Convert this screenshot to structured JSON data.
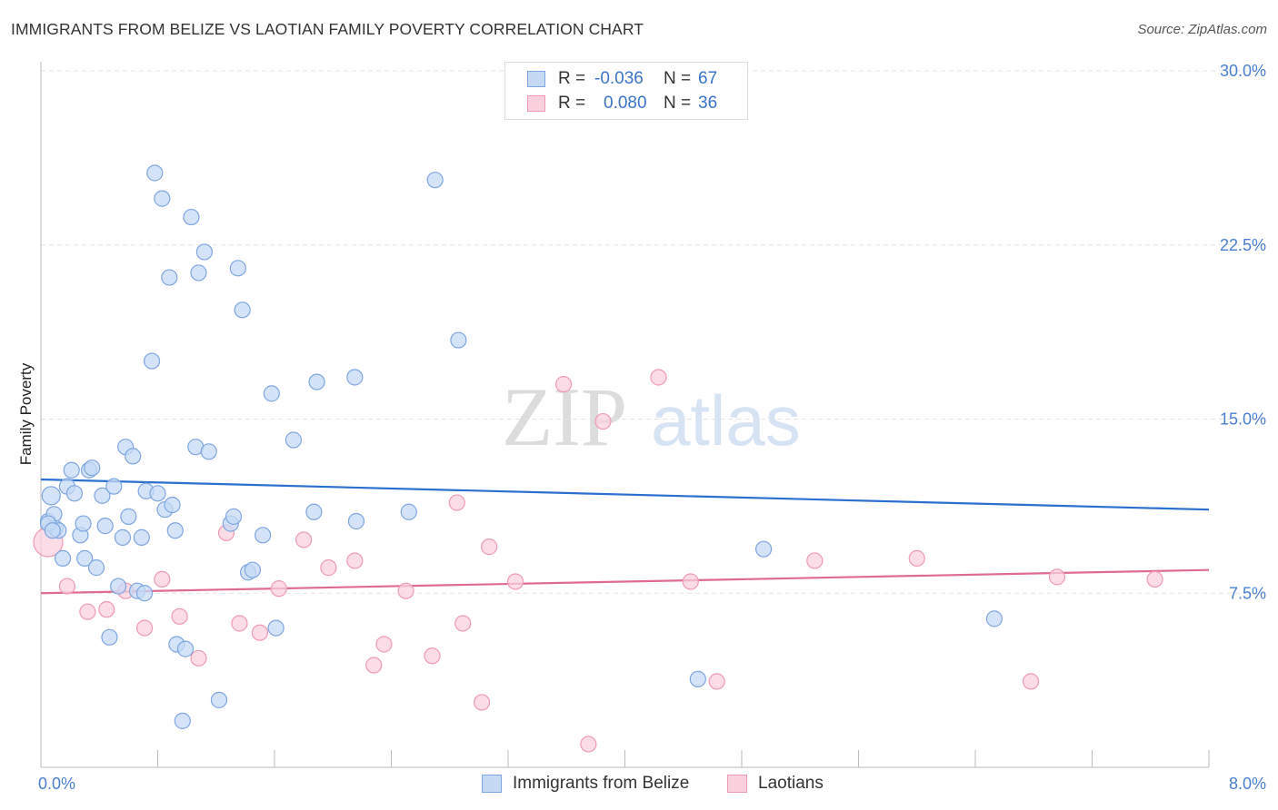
{
  "header": {
    "title": "IMMIGRANTS FROM BELIZE VS LAOTIAN FAMILY POVERTY CORRELATION CHART",
    "source": "Source: ZipAtlas.com"
  },
  "watermark": {
    "zip": "ZIP",
    "atlas": "atlas"
  },
  "legend": {
    "rows": [
      {
        "r_label": "R =",
        "r_value": "-0.036",
        "n_label": "N =",
        "n_value": "67"
      },
      {
        "r_label": "R =",
        "r_value": "0.080",
        "n_label": "N =",
        "n_value": "36"
      }
    ]
  },
  "bottom_legend": {
    "belize": "Immigrants from Belize",
    "laotians": "Laotians"
  },
  "colors": {
    "belize_fill": "#c5d9f5",
    "belize_stroke": "#7ea6e0",
    "belize_line": "#2b6fcf",
    "laotian_fill": "#fbd0dd",
    "laotian_stroke": "#ef9ab4",
    "laotian_line": "#e06a93",
    "tick_text": "#4a7fcf"
  },
  "chart_data": {
    "type": "scatter",
    "title": "IMMIGRANTS FROM BELIZE VS LAOTIAN FAMILY POVERTY CORRELATION CHART",
    "xlabel": "",
    "ylabel": "Family Poverty",
    "xlim": [
      0,
      8
    ],
    "ylim": [
      0,
      30
    ],
    "x_tick_labels": [
      "0.0%",
      "8.0%"
    ],
    "y_ticks": [
      7.5,
      15.0,
      22.5,
      30.0
    ],
    "y_tick_labels": [
      "7.5%",
      "15.0%",
      "22.5%",
      "30.0%"
    ],
    "grid": "horizontal dashed",
    "legend_position": "top-center",
    "series": [
      {
        "name": "Immigrants from Belize",
        "trend": {
          "x": [
            0,
            8
          ],
          "y": [
            12.4,
            11.1
          ]
        },
        "points": [
          [
            0.05,
            10.6
          ],
          [
            0.07,
            11.7
          ],
          [
            0.09,
            10.9
          ],
          [
            0.1,
            10.3
          ],
          [
            0.12,
            10.2
          ],
          [
            0.15,
            9.0
          ],
          [
            0.18,
            12.1
          ],
          [
            0.21,
            12.8
          ],
          [
            0.23,
            11.8
          ],
          [
            0.27,
            10.0
          ],
          [
            0.29,
            10.5
          ],
          [
            0.3,
            9.0
          ],
          [
            0.33,
            12.8
          ],
          [
            0.35,
            12.9
          ],
          [
            0.38,
            8.6
          ],
          [
            0.42,
            11.7
          ],
          [
            0.44,
            10.4
          ],
          [
            0.47,
            5.6
          ],
          [
            0.5,
            12.1
          ],
          [
            0.53,
            7.8
          ],
          [
            0.56,
            9.9
          ],
          [
            0.58,
            13.8
          ],
          [
            0.6,
            10.8
          ],
          [
            0.63,
            13.4
          ],
          [
            0.66,
            7.6
          ],
          [
            0.69,
            9.9
          ],
          [
            0.71,
            7.5
          ],
          [
            0.72,
            11.9
          ],
          [
            0.76,
            17.5
          ],
          [
            0.78,
            25.6
          ],
          [
            0.8,
            11.8
          ],
          [
            0.83,
            24.5
          ],
          [
            0.85,
            11.1
          ],
          [
            0.88,
            21.1
          ],
          [
            0.9,
            11.3
          ],
          [
            0.92,
            10.2
          ],
          [
            0.93,
            5.3
          ],
          [
            0.97,
            2.0
          ],
          [
            0.99,
            5.1
          ],
          [
            1.03,
            23.7
          ],
          [
            1.06,
            13.8
          ],
          [
            1.08,
            21.3
          ],
          [
            1.12,
            22.2
          ],
          [
            1.15,
            13.6
          ],
          [
            1.22,
            2.9
          ],
          [
            1.3,
            10.5
          ],
          [
            1.32,
            10.8
          ],
          [
            1.35,
            21.5
          ],
          [
            1.38,
            19.7
          ],
          [
            1.42,
            8.4
          ],
          [
            1.45,
            8.5
          ],
          [
            1.52,
            10.0
          ],
          [
            1.58,
            16.1
          ],
          [
            1.61,
            6.0
          ],
          [
            1.73,
            14.1
          ],
          [
            1.87,
            11.0
          ],
          [
            1.89,
            16.6
          ],
          [
            2.15,
            16.8
          ],
          [
            2.16,
            10.6
          ],
          [
            2.52,
            11.0
          ],
          [
            2.7,
            25.3
          ],
          [
            2.86,
            18.4
          ],
          [
            4.5,
            3.8
          ],
          [
            4.95,
            9.4
          ],
          [
            6.53,
            6.4
          ],
          [
            0.05,
            10.5
          ],
          [
            0.08,
            10.2
          ]
        ]
      },
      {
        "name": "Laotians",
        "trend": {
          "x": [
            0,
            8
          ],
          "y": [
            7.5,
            8.5
          ]
        },
        "points": [
          [
            0.05,
            9.7
          ],
          [
            0.18,
            7.8
          ],
          [
            0.32,
            6.7
          ],
          [
            0.45,
            6.8
          ],
          [
            0.58,
            7.6
          ],
          [
            0.71,
            6.0
          ],
          [
            0.83,
            8.1
          ],
          [
            0.95,
            6.5
          ],
          [
            1.08,
            4.7
          ],
          [
            1.27,
            10.1
          ],
          [
            1.36,
            6.2
          ],
          [
            1.5,
            5.8
          ],
          [
            1.63,
            7.7
          ],
          [
            1.8,
            9.8
          ],
          [
            1.97,
            8.6
          ],
          [
            2.15,
            8.9
          ],
          [
            2.28,
            4.4
          ],
          [
            2.35,
            5.3
          ],
          [
            2.5,
            7.6
          ],
          [
            2.68,
            4.8
          ],
          [
            2.85,
            11.4
          ],
          [
            2.89,
            6.2
          ],
          [
            3.02,
            2.8
          ],
          [
            3.07,
            9.5
          ],
          [
            3.25,
            8.0
          ],
          [
            3.58,
            16.5
          ],
          [
            3.75,
            1.0
          ],
          [
            3.85,
            14.9
          ],
          [
            4.23,
            16.8
          ],
          [
            4.45,
            8.0
          ],
          [
            4.63,
            3.7
          ],
          [
            5.3,
            8.9
          ],
          [
            6.0,
            9.0
          ],
          [
            6.78,
            3.7
          ],
          [
            6.96,
            8.2
          ],
          [
            7.63,
            8.1
          ]
        ]
      }
    ]
  }
}
